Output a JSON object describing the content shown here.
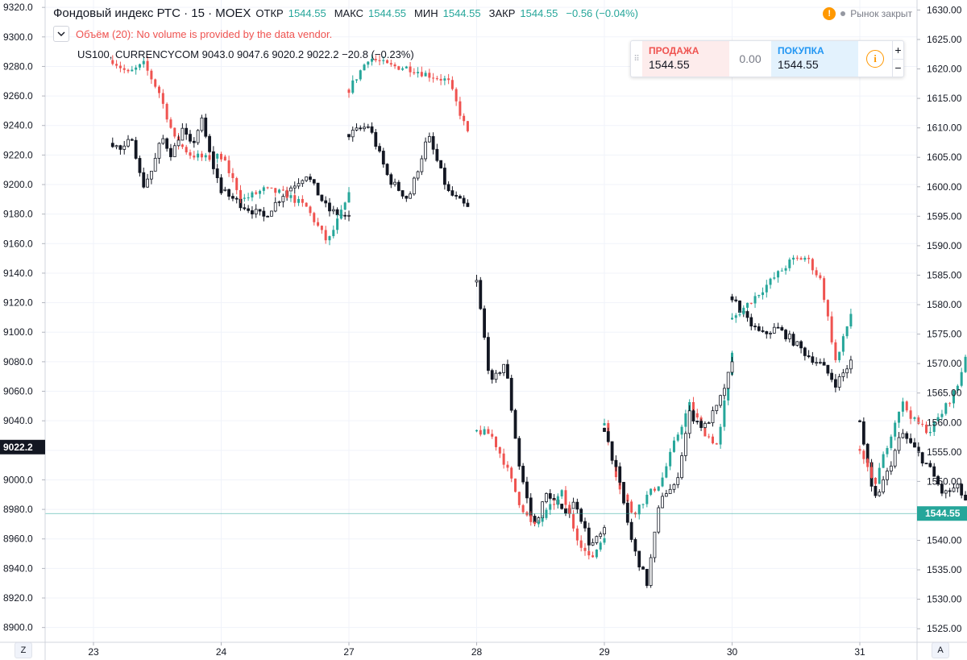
{
  "legend": {
    "title": "Фондовый индекс РТС · 15 · MOEX",
    "ohlc": [
      {
        "label": "ОТКР",
        "value": "1544.55"
      },
      {
        "label": "МАКС",
        "value": "1544.55"
      },
      {
        "label": "МИН",
        "value": "1544.55"
      },
      {
        "label": "ЗАКР",
        "value": "1544.55"
      }
    ],
    "change": "−0.56 (−0.04%)",
    "collapse_icon": "chevron-down-icon",
    "volume_text": "Объём (20): No volume is provided by the data vendor.",
    "compare_text": "US100, CURRENCYCOM  9043.0  9047.6  9020.2  9022.2  −20.8 (−0.23%)"
  },
  "market_status": "Рынок закрыт",
  "trade_widget": {
    "sell_label": "ПРОДАЖА",
    "sell_price": "1544.55",
    "spread": "0.00",
    "buy_label": "ПОКУПКА",
    "buy_price": "1544.55",
    "plus": "+",
    "minus": "−",
    "info": "i"
  },
  "corner": {
    "left": "Z",
    "right": "A"
  },
  "chart_data": {
    "type": "candlestick",
    "up_color": "#26a69a",
    "down_color": "#ef5350",
    "compare_color": "#131722",
    "x_ticks": [
      "23",
      "24",
      "27",
      "28",
      "29",
      "30",
      "31"
    ],
    "left_axis": {
      "ylim": [
        8890,
        9325
      ],
      "ticks": [
        9320,
        9300,
        9280,
        9260,
        9240,
        9220,
        9200,
        9180,
        9160,
        9140,
        9120,
        9100,
        9080,
        9060,
        9040,
        9020,
        9000,
        8980,
        8960,
        8940,
        8920,
        8900
      ],
      "tick_labels": [
        "9320.0",
        "9300.0",
        "9280.0",
        "9260.0",
        "9240.0",
        "9220.0",
        "9200.0",
        "9180.0",
        "9160.0",
        "9140.0",
        "9120.0",
        "9100.0",
        "9080.0",
        "9060.0",
        "9040.0",
        "9020.0",
        "9000.0",
        "8980.0",
        "8960.0",
        "8940.0",
        "8920.0",
        "8900.0"
      ],
      "last_value": 9022.2,
      "last_label": "9022.2"
    },
    "right_axis": {
      "ylim": [
        1522.7,
        1631.7
      ],
      "ticks": [
        1630,
        1625,
        1620,
        1615,
        1610,
        1605,
        1600,
        1595,
        1590,
        1585,
        1580,
        1575,
        1570,
        1565,
        1560,
        1555,
        1550,
        1545,
        1540,
        1535,
        1530,
        1525
      ],
      "tick_labels": [
        "1630.00",
        "1625.00",
        "1620.00",
        "1615.00",
        "1610.00",
        "1605.00",
        "1600.00",
        "1595.00",
        "1590.00",
        "1585.00",
        "1580.00",
        "1575.00",
        "1570.00",
        "1565.00",
        "1560.00",
        "1555.00",
        "1550.00",
        "1545.00",
        "1540.00",
        "1535.00",
        "1530.00",
        "1525.00"
      ],
      "last_value": 1544.55,
      "last_label": "1544.55"
    },
    "segments": [
      {
        "series": "rts",
        "start": 0.15,
        "end": 1.0,
        "anchors": [
          1621.5,
          1619.2,
          1620.8,
          1616.0,
          1608.0,
          1605.5,
          1604.8,
          1605.2
        ]
      },
      {
        "series": "us100",
        "start": 0.15,
        "end": 1.0,
        "anchors": [
          9228,
          9222,
          9233,
          9198,
          9210,
          9232,
          9220,
          9238,
          9225,
          9244,
          9216,
          9196
        ]
      },
      {
        "series": "us100",
        "start": 1.0,
        "end": 2.0,
        "anchors": [
          9196,
          9186,
          9178,
          9195,
          9207,
          9183,
          9177
        ]
      },
      {
        "series": "rts",
        "start": 1.0,
        "end": 2.0,
        "anchors": [
          1605.2,
          1597.8,
          1599.5,
          1598.8,
          1596.5,
          1590.5,
          1598.5
        ]
      },
      {
        "series": "rts",
        "start": 2.0,
        "end": 2.93,
        "anchors": [
          1616.5,
          1622.0,
          1620.5,
          1620.2,
          1619.0,
          1618.0,
          1609.0
        ]
      },
      {
        "series": "us100",
        "start": 2.0,
        "end": 2.93,
        "anchors": [
          9234,
          9240,
          9204,
          9190,
          9233,
          9195,
          9184
        ]
      },
      {
        "series": "us100",
        "start": 3.0,
        "end": 4.0,
        "anchors": [
          9134,
          9064,
          9080,
          9010,
          8968,
          8992,
          8978,
          8985,
          8955,
          8965
        ]
      },
      {
        "series": "rts",
        "start": 3.0,
        "end": 4.0,
        "anchors": [
          1558.5,
          1558.0,
          1553.0,
          1546.5,
          1542.0,
          1545.0,
          1548.0,
          1541.0,
          1536.5,
          1541.0
        ]
      },
      {
        "series": "rts",
        "start": 4.0,
        "end": 5.0,
        "anchors": [
          1559.5,
          1549.5,
          1544.5,
          1547.5,
          1550.0,
          1557.0,
          1563.0,
          1558.5,
          1556.0,
          1572.0
        ]
      },
      {
        "series": "us100",
        "start": 4.0,
        "end": 5.0,
        "anchors": [
          9035,
          9000,
          8955,
          8930,
          8990,
          8995,
          9045,
          9035,
          9050,
          9078
        ]
      },
      {
        "series": "us100",
        "start": 5.0,
        "end": 5.93,
        "anchors": [
          9124,
          9108,
          9098,
          9103,
          9095,
          9085,
          9078,
          9065,
          9080
        ]
      },
      {
        "series": "rts",
        "start": 5.0,
        "end": 5.93,
        "anchors": [
          1577.5,
          1580.0,
          1582.5,
          1585.0,
          1587.5,
          1588.0,
          1584.0,
          1570.0,
          1578.5
        ]
      },
      {
        "series": "us100",
        "start": 6.0,
        "end": 6.98,
        "anchors": [
          9040,
          8985,
          9005,
          9032,
          9020,
          9008,
          8990,
          8995,
          8980,
          8965
        ]
      },
      {
        "series": "rts",
        "start": 6.0,
        "end": 6.98,
        "anchors": [
          1555.5,
          1549.0,
          1556.5,
          1563.5,
          1560.0,
          1558.5,
          1562.0,
          1566.0,
          1575.0,
          1558.0
        ]
      }
    ]
  }
}
